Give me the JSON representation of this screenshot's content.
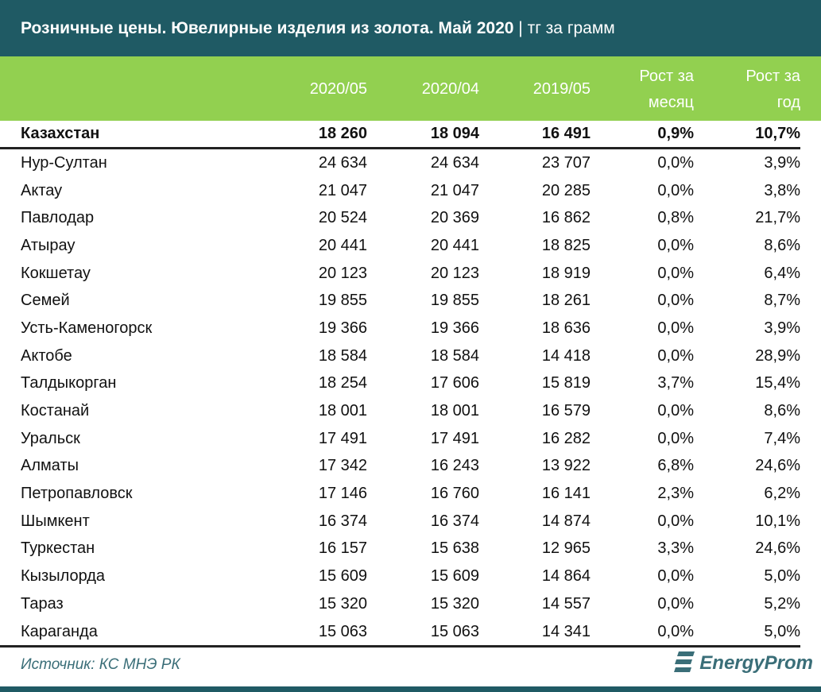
{
  "title": "Розничные цены. Ювелирные изделия из золота. Май 2020",
  "unit": "| тг за грамм",
  "colors": {
    "header": "#1f5a64",
    "subheader": "#92d050"
  },
  "columns": [
    "2020/05",
    "2020/04",
    "2019/05",
    "Рост за месяц",
    "Рост за год"
  ],
  "column_lines": [
    [
      "2020/05"
    ],
    [
      "2020/04"
    ],
    [
      "2019/05"
    ],
    [
      "Рост за",
      "месяц"
    ],
    [
      "Рост за",
      "год"
    ]
  ],
  "chart_data": {
    "type": "table",
    "title": "Розничные цены. Ювелирные изделия из золота. Май 2020 | тг за грамм",
    "headers": [
      "",
      "2020/05",
      "2020/04",
      "2019/05",
      "Рост за месяц",
      "Рост за год"
    ],
    "rows": [
      [
        "Казахстан",
        "18 260",
        "18 094",
        "16 491",
        "0,9%",
        "10,7%"
      ],
      [
        "Нур-Султан",
        "24 634",
        "24 634",
        "23 707",
        "0,0%",
        "3,9%"
      ],
      [
        "Актау",
        "21 047",
        "21 047",
        "20 285",
        "0,0%",
        "3,8%"
      ],
      [
        "Павлодар",
        "20 524",
        "20 369",
        "16 862",
        "0,8%",
        "21,7%"
      ],
      [
        "Атырау",
        "20 441",
        "20 441",
        "18 825",
        "0,0%",
        "8,6%"
      ],
      [
        "Кокшетау",
        "20 123",
        "20 123",
        "18 919",
        "0,0%",
        "6,4%"
      ],
      [
        "Семей",
        "19 855",
        "19 855",
        "18 261",
        "0,0%",
        "8,7%"
      ],
      [
        "Усть-Каменогорск",
        "19 366",
        "19 366",
        "18 636",
        "0,0%",
        "3,9%"
      ],
      [
        "Актобе",
        "18 584",
        "18 584",
        "14 418",
        "0,0%",
        "28,9%"
      ],
      [
        "Талдыкорган",
        "18 254",
        "17 606",
        "15 819",
        "3,7%",
        "15,4%"
      ],
      [
        "Костанай",
        "18 001",
        "18 001",
        "16 579",
        "0,0%",
        "8,6%"
      ],
      [
        "Уральск",
        "17 491",
        "17 491",
        "16 282",
        "0,0%",
        "7,4%"
      ],
      [
        "Алматы",
        "17 342",
        "16 243",
        "13 922",
        "6,8%",
        "24,6%"
      ],
      [
        "Петропавловск",
        "17 146",
        "16 760",
        "16 141",
        "2,3%",
        "6,2%"
      ],
      [
        "Шымкент",
        "16 374",
        "16 374",
        "14 874",
        "0,0%",
        "10,1%"
      ],
      [
        "Туркестан",
        "16 157",
        "15 638",
        "12 965",
        "3,3%",
        "24,6%"
      ],
      [
        "Кызылорда",
        "15 609",
        "15 609",
        "14 864",
        "0,0%",
        "5,0%"
      ],
      [
        "Тараз",
        "15 320",
        "15 320",
        "14 557",
        "0,0%",
        "5,2%"
      ],
      [
        "Караганда",
        "15 063",
        "15 063",
        "14 341",
        "0,0%",
        "5,0%"
      ]
    ]
  },
  "footer": {
    "source": "Источник: КС МНЭ РК",
    "logo": "EnergyProm"
  }
}
